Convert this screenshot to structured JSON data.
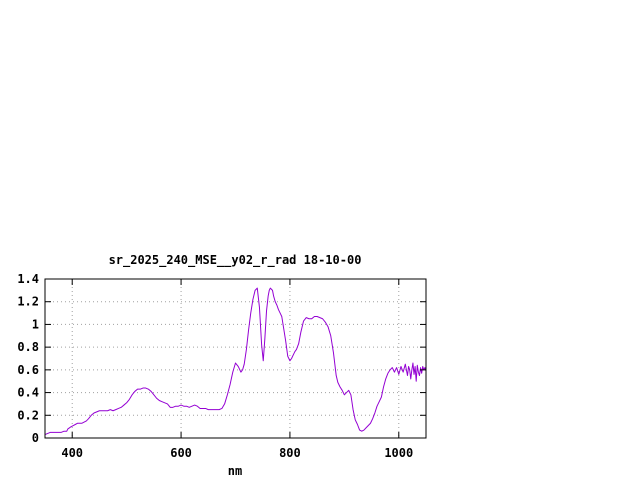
{
  "chart_data": {
    "type": "line",
    "title": "sr_2025_240_MSE__y02_r_rad 18-10-00",
    "xlabel": "nm",
    "ylabel": "",
    "xlim": [
      350,
      1050
    ],
    "ylim": [
      0,
      1.4
    ],
    "x_ticks": [
      400,
      600,
      800,
      1000
    ],
    "x_tick_labels": [
      "400",
      "600",
      "800",
      "1000"
    ],
    "y_ticks": [
      0,
      0.2,
      0.4,
      0.6,
      0.8,
      1,
      1.2,
      1.4
    ],
    "y_tick_labels": [
      "0",
      "0.2",
      "0.4",
      "0.6",
      "0.8",
      "1",
      "1.2",
      "1.4"
    ],
    "grid": true,
    "grid_style": "dotted",
    "legend": "none",
    "colors": {
      "series": "#9400d3",
      "axis": "#000000",
      "grid": "#a0a0a0",
      "background": "#ffffff"
    },
    "series": [
      {
        "x": [
          350,
          355,
          360,
          365,
          370,
          375,
          380,
          385,
          390,
          392,
          395,
          398,
          402,
          406,
          410,
          414,
          418,
          422,
          426,
          430,
          435,
          440,
          445,
          450,
          455,
          460,
          465,
          470,
          475,
          480,
          485,
          490,
          495,
          500,
          505,
          510,
          515,
          520,
          525,
          530,
          535,
          540,
          545,
          550,
          555,
          560,
          565,
          570,
          575,
          580,
          585,
          590,
          595,
          600,
          605,
          610,
          615,
          620,
          625,
          630,
          635,
          640,
          645,
          650,
          655,
          660,
          665,
          670,
          675,
          680,
          685,
          690,
          695,
          700,
          705,
          710,
          713,
          716,
          720,
          724,
          728,
          732,
          736,
          740,
          744,
          748,
          751,
          754,
          757,
          760,
          762,
          764,
          766,
          768,
          770,
          773,
          776,
          779,
          782,
          785,
          788,
          792,
          796,
          800,
          803,
          806,
          809,
          812,
          816,
          820,
          825,
          830,
          835,
          840,
          845,
          850,
          855,
          860,
          865,
          870,
          875,
          880,
          885,
          888,
          892,
          896,
          900,
          904,
          908,
          912,
          916,
          920,
          924,
          928,
          932,
          936,
          940,
          944,
          948,
          952,
          956,
          960,
          964,
          968,
          972,
          976,
          980,
          984,
          988,
          992,
          996,
          1000,
          1004,
          1008,
          1012,
          1016,
          1018,
          1020,
          1022,
          1024,
          1026,
          1028,
          1030,
          1032,
          1034,
          1036,
          1038,
          1040,
          1042,
          1044,
          1046,
          1048,
          1050
        ],
        "values": [
          0.03,
          0.04,
          0.05,
          0.05,
          0.05,
          0.05,
          0.05,
          0.06,
          0.06,
          0.08,
          0.09,
          0.1,
          0.11,
          0.12,
          0.13,
          0.13,
          0.13,
          0.14,
          0.15,
          0.17,
          0.2,
          0.22,
          0.23,
          0.24,
          0.24,
          0.24,
          0.24,
          0.25,
          0.24,
          0.25,
          0.26,
          0.27,
          0.29,
          0.31,
          0.34,
          0.38,
          0.41,
          0.43,
          0.43,
          0.44,
          0.44,
          0.43,
          0.41,
          0.38,
          0.35,
          0.33,
          0.32,
          0.31,
          0.3,
          0.27,
          0.27,
          0.28,
          0.28,
          0.29,
          0.28,
          0.28,
          0.27,
          0.28,
          0.29,
          0.28,
          0.26,
          0.26,
          0.26,
          0.25,
          0.25,
          0.25,
          0.25,
          0.25,
          0.26,
          0.3,
          0.38,
          0.47,
          0.58,
          0.66,
          0.63,
          0.58,
          0.6,
          0.65,
          0.78,
          0.95,
          1.1,
          1.22,
          1.3,
          1.32,
          1.15,
          0.82,
          0.68,
          0.88,
          1.12,
          1.25,
          1.3,
          1.32,
          1.31,
          1.3,
          1.25,
          1.2,
          1.17,
          1.13,
          1.1,
          1.07,
          0.98,
          0.86,
          0.72,
          0.68,
          0.7,
          0.73,
          0.76,
          0.78,
          0.83,
          0.93,
          1.03,
          1.06,
          1.05,
          1.05,
          1.07,
          1.07,
          1.06,
          1.05,
          1.02,
          0.98,
          0.9,
          0.75,
          0.55,
          0.49,
          0.45,
          0.42,
          0.38,
          0.4,
          0.42,
          0.38,
          0.25,
          0.16,
          0.12,
          0.07,
          0.06,
          0.07,
          0.09,
          0.11,
          0.13,
          0.17,
          0.22,
          0.28,
          0.32,
          0.36,
          0.45,
          0.52,
          0.57,
          0.6,
          0.62,
          0.58,
          0.62,
          0.56,
          0.63,
          0.58,
          0.65,
          0.55,
          0.63,
          0.6,
          0.52,
          0.6,
          0.66,
          0.56,
          0.63,
          0.5,
          0.64,
          0.58,
          0.55,
          0.62,
          0.57,
          0.63,
          0.6,
          0.62,
          0.59
        ]
      }
    ]
  }
}
